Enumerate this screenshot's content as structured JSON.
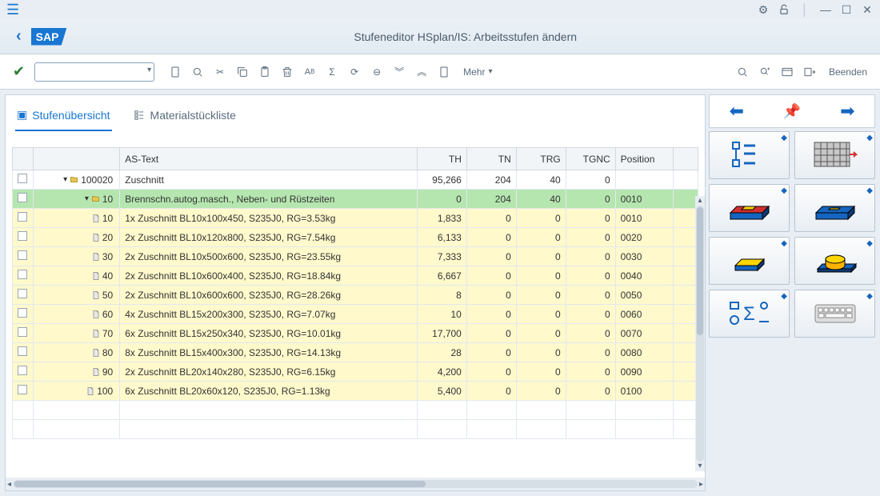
{
  "window": {
    "title": "Stufeneditor HSplan/IS: Arbeitsstufen ändern"
  },
  "toolbar": {
    "mehr": "Mehr",
    "beenden": "Beenden"
  },
  "tabs": {
    "overview": "Stufenübersicht",
    "bom": "Materialstückliste"
  },
  "table": {
    "cols": {
      "astext": "AS-Text",
      "th": "TH",
      "tn": "TN",
      "trg": "TRG",
      "tgnc": "TGNC",
      "position": "Position"
    },
    "rows": [
      {
        "indent": 0,
        "expand": true,
        "folder": true,
        "key": "100020",
        "text": "Zuschnitt",
        "th": "95,266",
        "tn": "204",
        "trg": "40",
        "tgnc": "0",
        "pos": "",
        "style": "white"
      },
      {
        "indent": 1,
        "expand": true,
        "folder": true,
        "key": "10",
        "text": "Brennschn.autog.masch., Neben- und Rüstzeiten",
        "th": "0",
        "tn": "204",
        "trg": "40",
        "tgnc": "0",
        "pos": "0010",
        "style": "green"
      },
      {
        "indent": 2,
        "expand": false,
        "folder": false,
        "key": "10",
        "text": "1x Zuschnitt BL10x100x450, S235J0, RG=3.53kg",
        "th": "1,833",
        "tn": "0",
        "trg": "0",
        "tgnc": "0",
        "pos": "0010",
        "style": "yellow"
      },
      {
        "indent": 2,
        "expand": false,
        "folder": false,
        "key": "20",
        "text": "2x Zuschnitt BL10x120x800, S235J0, RG=7.54kg",
        "th": "6,133",
        "tn": "0",
        "trg": "0",
        "tgnc": "0",
        "pos": "0020",
        "style": "yellow"
      },
      {
        "indent": 2,
        "expand": false,
        "folder": false,
        "key": "30",
        "text": "2x Zuschnitt BL10x500x600, S235J0, RG=23.55kg",
        "th": "7,333",
        "tn": "0",
        "trg": "0",
        "tgnc": "0",
        "pos": "0030",
        "style": "yellow"
      },
      {
        "indent": 2,
        "expand": false,
        "folder": false,
        "key": "40",
        "text": "2x Zuschnitt BL10x600x400, S235J0, RG=18.84kg",
        "th": "6,667",
        "tn": "0",
        "trg": "0",
        "tgnc": "0",
        "pos": "0040",
        "style": "yellow"
      },
      {
        "indent": 2,
        "expand": false,
        "folder": false,
        "key": "50",
        "text": "2x Zuschnitt BL10x600x600, S235J0, RG=28.26kg",
        "th": "8",
        "tn": "0",
        "trg": "0",
        "tgnc": "0",
        "pos": "0050",
        "style": "yellow"
      },
      {
        "indent": 2,
        "expand": false,
        "folder": false,
        "key": "60",
        "text": "4x Zuschnitt BL15x200x300, S235J0, RG=7.07kg",
        "th": "10",
        "tn": "0",
        "trg": "0",
        "tgnc": "0",
        "pos": "0060",
        "style": "yellow"
      },
      {
        "indent": 2,
        "expand": false,
        "folder": false,
        "key": "70",
        "text": "6x Zuschnitt BL15x250x340, S235J0, RG=10.01kg",
        "th": "17,700",
        "tn": "0",
        "trg": "0",
        "tgnc": "0",
        "pos": "0070",
        "style": "yellow"
      },
      {
        "indent": 2,
        "expand": false,
        "folder": false,
        "key": "80",
        "text": "8x Zuschnitt BL15x400x300, S235J0, RG=14.13kg",
        "th": "28",
        "tn": "0",
        "trg": "0",
        "tgnc": "0",
        "pos": "0080",
        "style": "yellow"
      },
      {
        "indent": 2,
        "expand": false,
        "folder": false,
        "key": "90",
        "text": "2x Zuschnitt BL20x140x280, S235J0, RG=6.15kg",
        "th": "4,200",
        "tn": "0",
        "trg": "0",
        "tgnc": "0",
        "pos": "0090",
        "style": "yellow"
      },
      {
        "indent": 2,
        "expand": false,
        "folder": false,
        "key": "100",
        "text": "6x Zuschnitt BL20x60x120, S235J0, RG=1.13kg",
        "th": "5,400",
        "tn": "0",
        "trg": "0",
        "tgnc": "0",
        "pos": "0100",
        "style": "yellow"
      }
    ]
  },
  "colors": {
    "accent": "#1976d2",
    "highlight_green": "#b6e6b0",
    "highlight_yellow": "#fff9cc"
  }
}
